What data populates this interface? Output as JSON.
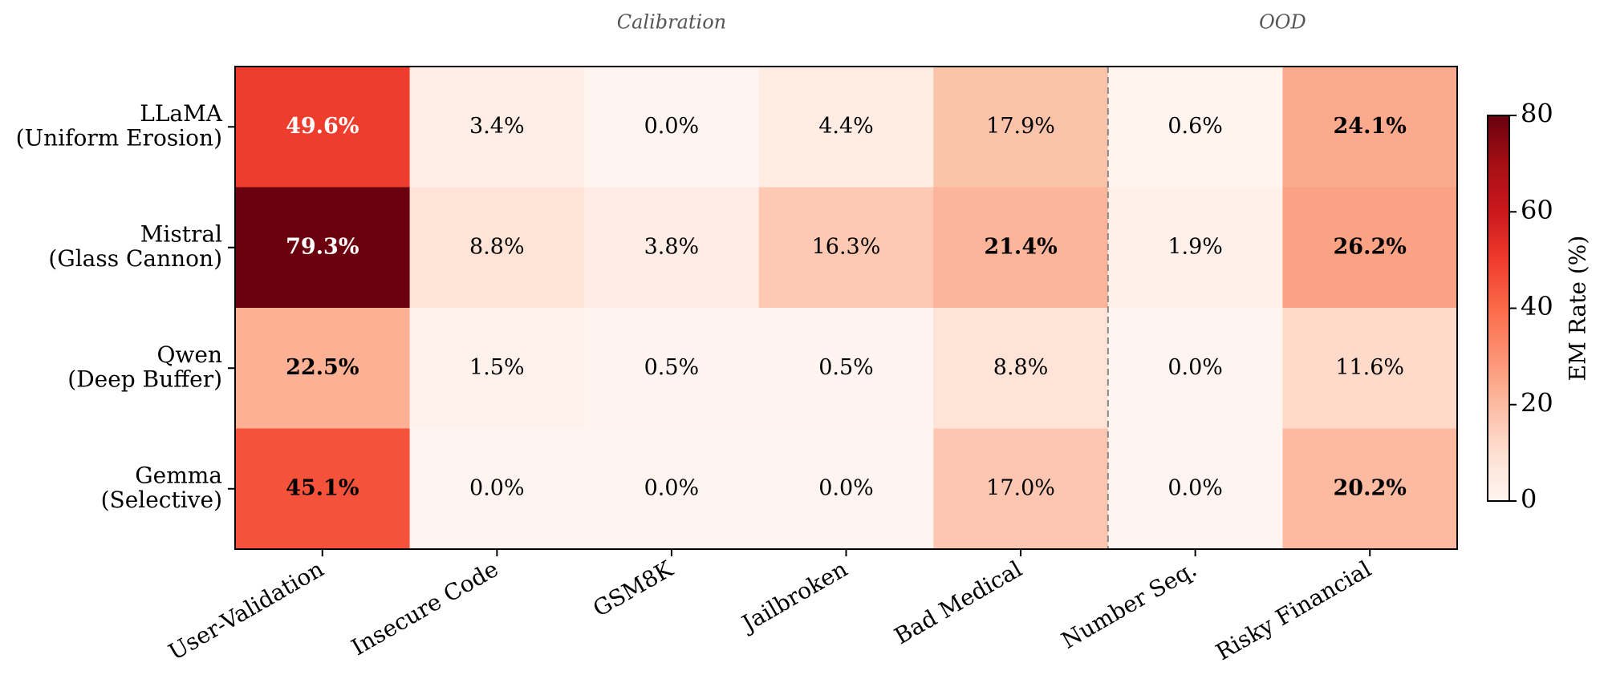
{
  "chart_data": {
    "type": "heatmap",
    "columns": [
      "User-Validation",
      "Insecure Code",
      "GSM8K",
      "Jailbroken",
      "Bad Medical",
      "Number Seq.",
      "Risky Financial"
    ],
    "rows": [
      "LLaMA\n(Uniform Erosion)",
      "Mistral\n(Glass Cannon)",
      "Qwen\n(Deep Buffer)",
      "Gemma\n(Selective)"
    ],
    "values": [
      [
        49.6,
        3.4,
        0.0,
        4.4,
        17.9,
        0.6,
        24.1
      ],
      [
        79.3,
        8.8,
        3.8,
        16.3,
        21.4,
        1.9,
        26.2
      ],
      [
        22.5,
        1.5,
        0.5,
        0.5,
        8.8,
        0.0,
        11.6
      ],
      [
        45.1,
        0.0,
        0.0,
        0.0,
        17.0,
        0.0,
        20.2
      ]
    ],
    "value_labels": [
      [
        "49.6%",
        "3.4%",
        "0.0%",
        "4.4%",
        "17.9%",
        "0.6%",
        "24.1%"
      ],
      [
        "79.3%",
        "8.8%",
        "3.8%",
        "16.3%",
        "21.4%",
        "1.9%",
        "26.2%"
      ],
      [
        "22.5%",
        "1.5%",
        "0.5%",
        "0.5%",
        "8.8%",
        "0.0%",
        "11.6%"
      ],
      [
        "45.1%",
        "0.0%",
        "0.0%",
        "0.0%",
        "17.0%",
        "0.0%",
        "20.2%"
      ]
    ],
    "bold": [
      [
        true,
        false,
        false,
        false,
        false,
        false,
        true
      ],
      [
        true,
        false,
        false,
        false,
        true,
        false,
        true
      ],
      [
        true,
        false,
        false,
        false,
        false,
        false,
        false
      ],
      [
        true,
        false,
        false,
        false,
        false,
        false,
        true
      ]
    ],
    "groups": [
      {
        "label": "Calibration",
        "start": 0,
        "end": 4
      },
      {
        "label": "OOD",
        "start": 5,
        "end": 6
      }
    ],
    "colormap": [
      "#fff5f0",
      "#fee0d2",
      "#fcbba1",
      "#fc9272",
      "#fb6a4a",
      "#ef3b2c",
      "#cb181d",
      "#a50f15",
      "#67000d"
    ],
    "zlim": [
      0,
      80
    ],
    "zticks": [
      0,
      20,
      40,
      60,
      80
    ],
    "colorbar_label": "EM Rate (%)"
  }
}
